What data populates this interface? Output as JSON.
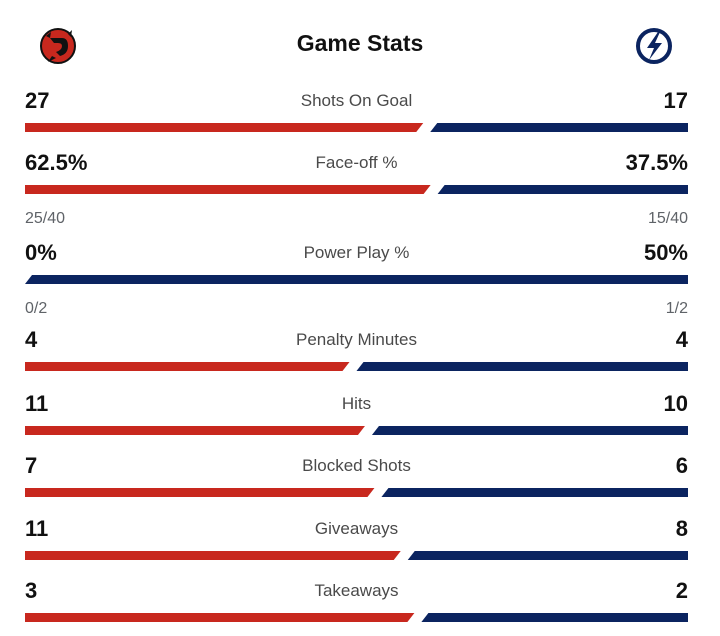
{
  "header": {
    "title": "Game Stats"
  },
  "teams": {
    "home": {
      "logo": "devils-logo",
      "color": "#c8281e"
    },
    "away": {
      "logo": "lightning-logo",
      "color": "#0b2460"
    }
  },
  "stats": [
    {
      "label": "Shots On Goal",
      "home": "27",
      "away": "17",
      "home_value": 27,
      "away_value": 17
    },
    {
      "label": "Face-off %",
      "home": "62.5%",
      "away": "37.5%",
      "home_value": 62.5,
      "away_value": 37.5,
      "home_sub": "25/40",
      "away_sub": "15/40"
    },
    {
      "label": "Power Play %",
      "home": "0%",
      "away": "50%",
      "home_value": 0,
      "away_value": 50,
      "home_sub": "0/2",
      "away_sub": "1/2"
    },
    {
      "label": "Penalty Minutes",
      "home": "4",
      "away": "4",
      "home_value": 4,
      "away_value": 4
    },
    {
      "label": "Hits",
      "home": "11",
      "away": "10",
      "home_value": 11,
      "away_value": 10
    },
    {
      "label": "Blocked Shots",
      "home": "7",
      "away": "6",
      "home_value": 7,
      "away_value": 6
    },
    {
      "label": "Giveaways",
      "home": "11",
      "away": "8",
      "home_value": 11,
      "away_value": 8
    },
    {
      "label": "Takeaways",
      "home": "3",
      "away": "2",
      "home_value": 3,
      "away_value": 2
    }
  ]
}
